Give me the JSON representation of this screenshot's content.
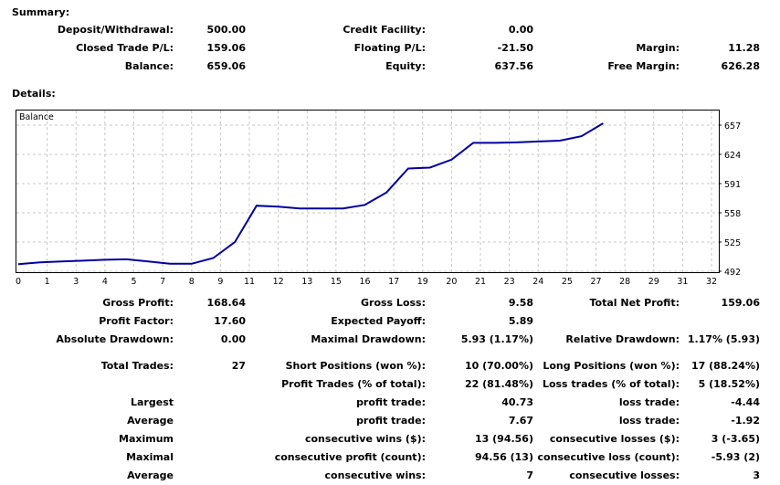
{
  "summary": {
    "title": "Summary:",
    "rows": [
      [
        {
          "label": "Deposit/Withdrawal:",
          "value": "500.00"
        },
        {
          "label": "Credit Facility:",
          "value": "0.00"
        },
        {
          "label": "",
          "value": ""
        }
      ],
      [
        {
          "label": "Closed Trade P/L:",
          "value": "159.06"
        },
        {
          "label": "Floating P/L:",
          "value": "-21.50"
        },
        {
          "label": "Margin:",
          "value": "11.28"
        }
      ],
      [
        {
          "label": "Balance:",
          "value": "659.06"
        },
        {
          "label": "Equity:",
          "value": "637.56"
        },
        {
          "label": "Free Margin:",
          "value": "626.28"
        }
      ]
    ]
  },
  "details": {
    "title": "Details:",
    "rows": [
      [
        {
          "label": "Gross Profit:",
          "value": "168.64"
        },
        {
          "label": "Gross Loss:",
          "value": "9.58"
        },
        {
          "label": "Total Net Profit:",
          "value": "159.06"
        }
      ],
      [
        {
          "label": "Profit Factor:",
          "value": "17.60"
        },
        {
          "label": "Expected Payoff:",
          "value": "5.89"
        },
        {
          "label": "",
          "value": ""
        }
      ],
      [
        {
          "label": "Absolute Drawdown:",
          "value": "0.00"
        },
        {
          "label": "Maximal Drawdown:",
          "value": "5.93 (1.17%)"
        },
        {
          "label": "Relative Drawdown:",
          "value": "1.17% (5.93)"
        }
      ],
      [
        {
          "label": "Total Trades:",
          "value": "27"
        },
        {
          "label": "Short Positions (won %):",
          "value": "10 (70.00%)"
        },
        {
          "label": "Long Positions (won %):",
          "value": "17 (88.24%)"
        }
      ],
      [
        {
          "label": "",
          "value": ""
        },
        {
          "label": "Profit Trades (% of total):",
          "value": "22 (81.48%)"
        },
        {
          "label": "Loss trades (% of total):",
          "value": "5 (18.52%)"
        }
      ],
      [
        {
          "label": "Largest",
          "value": ""
        },
        {
          "label": "profit trade:",
          "value": "40.73"
        },
        {
          "label": "loss trade:",
          "value": "-4.44"
        }
      ],
      [
        {
          "label": "Average",
          "value": ""
        },
        {
          "label": "profit trade:",
          "value": "7.67"
        },
        {
          "label": "loss trade:",
          "value": "-1.92"
        }
      ],
      [
        {
          "label": "Maximum",
          "value": ""
        },
        {
          "label": "consecutive wins ($):",
          "value": "13 (94.56)"
        },
        {
          "label": "consecutive losses ($):",
          "value": "3 (-3.65)"
        }
      ],
      [
        {
          "label": "Maximal",
          "value": ""
        },
        {
          "label": "consecutive profit (count):",
          "value": "94.56 (13)"
        },
        {
          "label": "consecutive loss (count):",
          "value": "-5.93 (2)"
        }
      ],
      [
        {
          "label": "Average",
          "value": ""
        },
        {
          "label": "consecutive wins:",
          "value": "7"
        },
        {
          "label": "consecutive losses:",
          "value": "3"
        }
      ]
    ]
  },
  "chart_data": {
    "type": "line",
    "title": "Balance",
    "xlabel": "",
    "ylabel": "",
    "xlim": [
      0,
      32
    ],
    "ylim": [
      492,
      657
    ],
    "grid": true,
    "line_color": "#0000a0",
    "x_ticks": [
      "0",
      "1",
      "3",
      "4",
      "5",
      "7",
      "8",
      "9",
      "11",
      "12",
      "13",
      "15",
      "16",
      "17",
      "19",
      "20",
      "21",
      "23",
      "24",
      "25",
      "27",
      "28",
      "29",
      "31",
      "32"
    ],
    "y_ticks": [
      "657",
      "624",
      "591",
      "558",
      "525",
      "492"
    ],
    "series": [
      {
        "name": "Balance",
        "x": [
          0,
          1,
          2,
          3,
          4,
          5,
          6,
          7,
          8,
          9,
          10,
          11,
          12,
          13,
          14,
          15,
          16,
          17,
          18,
          19,
          20,
          21,
          22,
          23,
          24,
          25,
          26,
          27
        ],
        "values": [
          500,
          502,
          503,
          504,
          505,
          505.5,
          503,
          500.5,
          500.5,
          507,
          525,
          566,
          565,
          563,
          563,
          563,
          567,
          581,
          608,
          609,
          618,
          637,
          637,
          637.5,
          638.5,
          639.5,
          644.5,
          659.06
        ]
      }
    ]
  }
}
